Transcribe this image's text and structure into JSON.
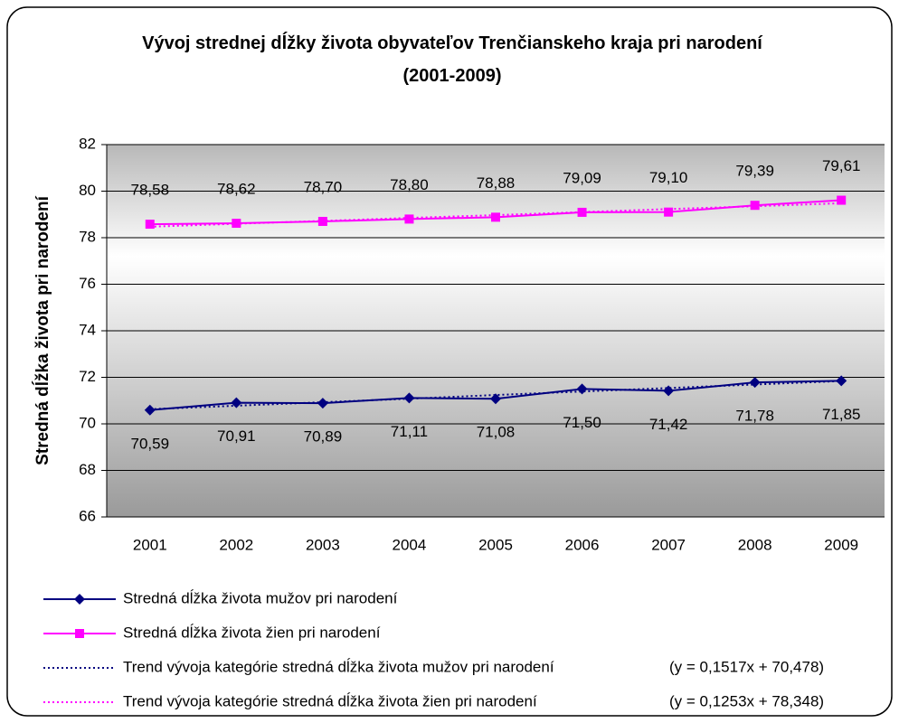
{
  "chart_data": {
    "type": "line",
    "title": "Vývoj strednej dĺžky života obyvateľov Trenčianskeho kraja pri narodení (2001-2009)",
    "y_label": "Stredná dĺžka života pri narodení",
    "categories": [
      "2001",
      "2002",
      "2003",
      "2004",
      "2005",
      "2006",
      "2007",
      "2008",
      "2009"
    ],
    "ylim": [
      66,
      82
    ],
    "yticks": [
      66,
      68,
      70,
      72,
      74,
      76,
      78,
      80,
      82
    ],
    "grid": true,
    "legend": "bottom",
    "series": [
      {
        "name": "Stredná dĺžka života mužov pri narodení",
        "color": "#000080",
        "marker": "diamond",
        "label_side": "below",
        "values": [
          70.59,
          70.91,
          70.89,
          71.11,
          71.08,
          71.5,
          71.42,
          71.78,
          71.85
        ],
        "value_labels": [
          "70,59",
          "70,91",
          "70,89",
          "71,11",
          "71,08",
          "71,50",
          "71,42",
          "71,78",
          "71,85"
        ]
      },
      {
        "name": "Stredná dĺžka života žien pri narodení",
        "color": "#ff00ff",
        "marker": "square",
        "label_side": "above",
        "values": [
          78.58,
          78.62,
          78.7,
          78.8,
          78.88,
          79.09,
          79.1,
          79.39,
          79.61
        ],
        "value_labels": [
          "78,58",
          "78,62",
          "78,70",
          "78,80",
          "78,88",
          "79,09",
          "79,10",
          "79,39",
          "79,61"
        ]
      },
      {
        "name": "Trend vývoja kategórie stredná dĺžka života mužov pri narodení",
        "equation": "(y = 0,1517x + 70,478)",
        "color": "#000080",
        "dashed": true,
        "values": [
          70.63,
          70.78,
          70.93,
          71.08,
          71.24,
          71.39,
          71.54,
          71.69,
          71.84
        ]
      },
      {
        "name": "Trend vývoja kategórie stredná dĺžka života žien pri narodení",
        "equation": "(y = 0,1253x + 78,348)",
        "color": "#ff00ff",
        "dashed": true,
        "values": [
          78.47,
          78.6,
          78.72,
          78.85,
          78.97,
          79.1,
          79.23,
          79.35,
          79.48
        ]
      }
    ]
  }
}
